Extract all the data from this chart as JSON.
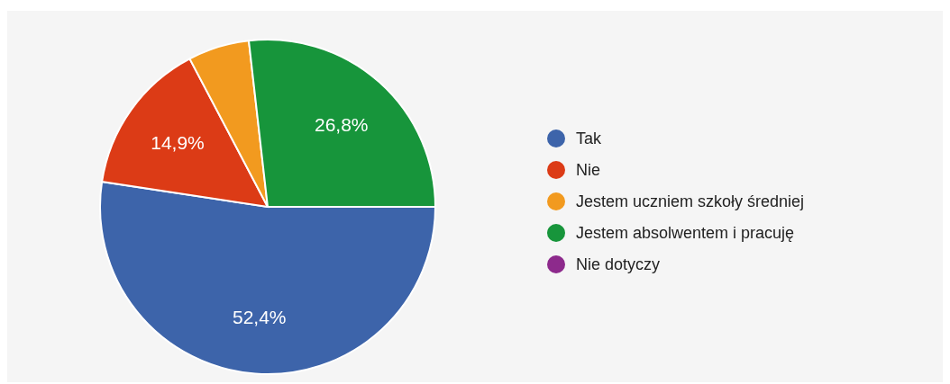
{
  "chart_data": {
    "type": "pie",
    "categories": [
      "Tak",
      "Nie",
      "Jestem uczniem szkoły średniej",
      "Jestem absolwentem i pracuję",
      "Nie dotyczy"
    ],
    "values": [
      52.4,
      14.9,
      5.9,
      26.8,
      0
    ],
    "colors": [
      "#3d64aa",
      "#dc3b16",
      "#f29a1f",
      "#17953b",
      "#8d2a8c"
    ],
    "value_labels": [
      "52,4%",
      "14,9%",
      null,
      "26,8%",
      null
    ],
    "legend": "right"
  }
}
